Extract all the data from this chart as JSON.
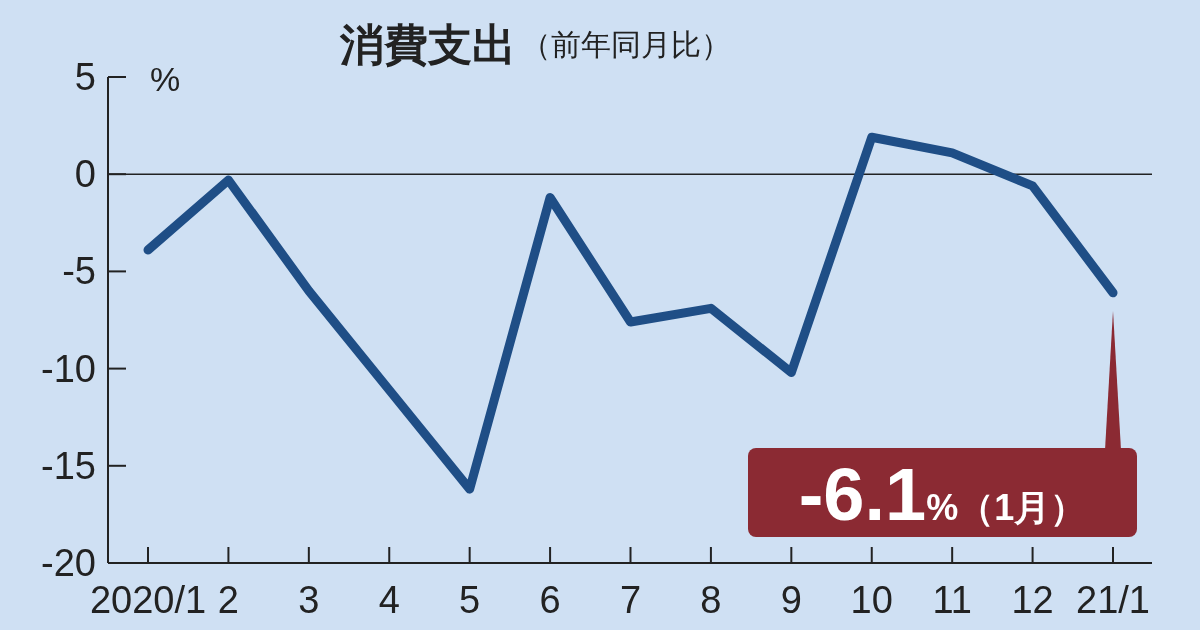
{
  "chart_data": {
    "type": "line",
    "title": "消費支出",
    "subtitle": "（前年同月比）",
    "ylabel": "%",
    "categories": [
      "2020/1",
      "2",
      "3",
      "4",
      "5",
      "6",
      "7",
      "8",
      "9",
      "10",
      "11",
      "12",
      "21/1"
    ],
    "series": [
      {
        "color": "#1f4e86",
        "values": [
          -3.9,
          -0.3,
          -6.0,
          -11.1,
          -16.2,
          -1.2,
          -7.6,
          -6.9,
          -10.2,
          1.9,
          1.1,
          -0.6,
          -6.1
        ]
      }
    ],
    "ylim": [
      -20,
      5
    ],
    "yticks": [
      5,
      0,
      -5,
      -10,
      -15,
      -20
    ],
    "ref_lines": [
      {
        "axis": "y",
        "value": 0,
        "color": "#222222"
      }
    ],
    "annotations": [
      {
        "text": "-6.1%（1月）",
        "x": "21/1",
        "y": -6.1
      }
    ],
    "grid": false,
    "marker": "none",
    "line_style": "solid"
  }
}
